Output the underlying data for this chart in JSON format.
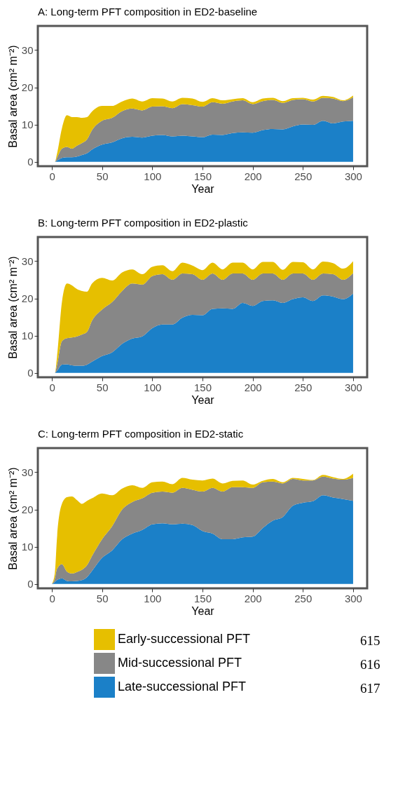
{
  "chart_data": [
    {
      "type": "area",
      "stacked": true,
      "title": "A: Long-term PFT composition in ED2-baseline",
      "xlabel": "Year",
      "ylabel": "Basal area (cm² m⁻²)",
      "xlim": [
        -14,
        314
      ],
      "ylim": [
        -1.2,
        36.5
      ],
      "xticks": [
        0,
        50,
        100,
        150,
        200,
        250,
        300
      ],
      "yticks": [
        0,
        10,
        20,
        30
      ],
      "grid": false,
      "legend": false,
      "x": [
        0,
        3,
        5,
        10,
        15,
        20,
        25,
        30,
        35,
        40,
        50,
        60,
        70,
        80,
        90,
        100,
        110,
        120,
        130,
        140,
        150,
        160,
        170,
        180,
        190,
        200,
        210,
        220,
        230,
        240,
        250,
        260,
        270,
        280,
        290,
        300
      ],
      "series": [
        {
          "color": "#1b80c8",
          "values": [
            0,
            0,
            0.3,
            1,
            1.2,
            1.2,
            1.4,
            1.8,
            2.3,
            3.3,
            4.6,
            5.2,
            6.3,
            6.7,
            6.5,
            7.0,
            7.2,
            6.8,
            7.0,
            6.8,
            6.6,
            7.3,
            7.2,
            7.7,
            7.9,
            7.8,
            8.5,
            8.8,
            8.7,
            9.5,
            10.0,
            9.9,
            11.0,
            10.3,
            10.8,
            11.0
          ]
        },
        {
          "color": "#878787",
          "values": [
            0,
            0,
            0.7,
            2.5,
            2.8,
            2.3,
            2.9,
            3.2,
            3.7,
            5.2,
            6.4,
            6.6,
            7.3,
            7.6,
            7.3,
            7.8,
            7.7,
            7.6,
            8.5,
            8.4,
            8.2,
            8.7,
            8.4,
            8.5,
            8.6,
            7.7,
            7.8,
            7.8,
            7.1,
            7.1,
            6.8,
            6.3,
            6.2,
            6.7,
            5.5,
            6.3
          ]
        },
        {
          "color": "#e6bf00",
          "values": [
            0,
            0,
            1,
            5.5,
            8.5,
            8.5,
            7.7,
            6.8,
            6,
            5,
            4,
            3.2,
            2.6,
            2.7,
            2.4,
            2.3,
            2.1,
            1.8,
            1.7,
            1.8,
            1.3,
            1.1,
            0.9,
            0.6,
            0.6,
            0.5,
            0.7,
            0.6,
            0.5,
            0.5,
            0.4,
            0.5,
            0.5,
            0.4,
            0.2,
            0.5
          ]
        }
      ]
    },
    {
      "type": "area",
      "stacked": true,
      "title": "B: Long-term PFT composition in ED2-plastic",
      "xlabel": "Year",
      "ylabel": "Basal area (cm² m⁻²)",
      "xlim": [
        -14,
        314
      ],
      "ylim": [
        -1.2,
        36.5
      ],
      "xticks": [
        0,
        50,
        100,
        150,
        200,
        250,
        300
      ],
      "yticks": [
        0,
        10,
        20,
        30
      ],
      "grid": false,
      "legend": false,
      "x": [
        0,
        3,
        5,
        10,
        15,
        20,
        25,
        30,
        35,
        40,
        50,
        60,
        70,
        80,
        90,
        100,
        110,
        120,
        130,
        140,
        150,
        160,
        170,
        180,
        190,
        200,
        210,
        220,
        230,
        240,
        250,
        260,
        270,
        280,
        290,
        300
      ],
      "series": [
        {
          "color": "#1b80c8",
          "values": [
            0,
            0,
            0.5,
            2.2,
            2.3,
            2.0,
            1.9,
            1.9,
            2.2,
            3.0,
            4.5,
            5.5,
            7.8,
            9.2,
            9.8,
            12.0,
            13.0,
            13.0,
            14.8,
            15.6,
            15.5,
            17.2,
            17.3,
            17.2,
            18.8,
            18.0,
            19.3,
            19.5,
            18.8,
            19.8,
            20.3,
            19.3,
            20.8,
            20.5,
            19.8,
            21.3
          ]
        },
        {
          "color": "#878787",
          "values": [
            0,
            0,
            1.5,
            6.3,
            7.0,
            7.5,
            7.9,
            8.4,
            8.8,
            11,
            12.5,
            13.5,
            14.2,
            14.8,
            13.9,
            14,
            13.5,
            12,
            11.9,
            10.9,
            9.5,
            9.5,
            7.7,
            9.5,
            7.9,
            7,
            7.4,
            7.2,
            6.2,
            6.9,
            6.4,
            5.7,
            5.9,
            6,
            5.2,
            5.5
          ]
        },
        {
          "color": "#e6bf00",
          "values": [
            0,
            0,
            2,
            10.5,
            14.7,
            14,
            12.7,
            11.7,
            10.8,
            10,
            8.5,
            5.8,
            5,
            3.8,
            2.8,
            2.5,
            2.4,
            2.3,
            2.9,
            2.3,
            2.6,
            2.9,
            2.8,
            2.9,
            2.9,
            2.8,
            3.1,
            3.1,
            2.7,
            3.1,
            3,
            2.8,
            3.2,
            3,
            3,
            3.2
          ]
        }
      ]
    },
    {
      "type": "area",
      "stacked": true,
      "title": "C: Long-term PFT composition in ED2-static",
      "xlabel": "Year",
      "ylabel": "Basal area (cm² m⁻²)",
      "xlim": [
        -14,
        314
      ],
      "ylim": [
        -1.2,
        36.5
      ],
      "xticks": [
        0,
        50,
        100,
        150,
        200,
        250,
        300
      ],
      "yticks": [
        0,
        10,
        20,
        30
      ],
      "grid": false,
      "legend": "bottom",
      "annotations": [
        "615",
        "616",
        "617"
      ],
      "x": [
        0,
        3,
        5,
        10,
        15,
        20,
        25,
        30,
        35,
        40,
        50,
        60,
        70,
        80,
        90,
        100,
        110,
        120,
        130,
        140,
        150,
        160,
        170,
        180,
        190,
        200,
        210,
        220,
        230,
        240,
        250,
        260,
        270,
        280,
        290,
        300
      ],
      "series": [
        {
          "name": "Late-successional PFT",
          "color": "#1b80c8",
          "values": [
            0,
            0.5,
            1,
            1.5,
            0.8,
            0.7,
            0.8,
            1.0,
            1.8,
            3.5,
            7,
            9,
            12,
            13.5,
            14.5,
            16,
            16.3,
            16,
            16.2,
            15.8,
            14.2,
            13.5,
            12,
            12,
            12.5,
            12.7,
            15,
            17,
            18,
            21,
            21.8,
            22.2,
            23.8,
            23.2,
            22.8,
            22.3
          ]
        },
        {
          "name": "Mid-successional PFT",
          "color": "#878787",
          "values": [
            0,
            1,
            3,
            3.8,
            2.5,
            2.1,
            2.4,
            2.8,
            3.2,
            4,
            5,
            6.5,
            8,
            8.5,
            8.5,
            8.5,
            8.5,
            8.5,
            9.6,
            9.5,
            10.6,
            12.3,
            12.8,
            14,
            13.5,
            13.1,
            12.3,
            10.5,
            9,
            7.2,
            6,
            5.6,
            5,
            5.1,
            5.2,
            6.2
          ]
        },
        {
          "name": "Early-successional PFT",
          "color": "#e6bf00",
          "values": [
            0,
            1.5,
            8,
            16.2,
            20,
            20.7,
            19.3,
            17.7,
            17.3,
            15.5,
            12.3,
            8.3,
            5.6,
            4.5,
            2.8,
            2.8,
            2.7,
            2.3,
            2.7,
            2.7,
            3,
            2.5,
            2.2,
            1.7,
            1.8,
            0.9,
            0.4,
            0.7,
            0.3,
            0.3,
            0.4,
            0.1,
            0.5,
            0.4,
            0.2,
            1.1
          ]
        }
      ]
    }
  ]
}
